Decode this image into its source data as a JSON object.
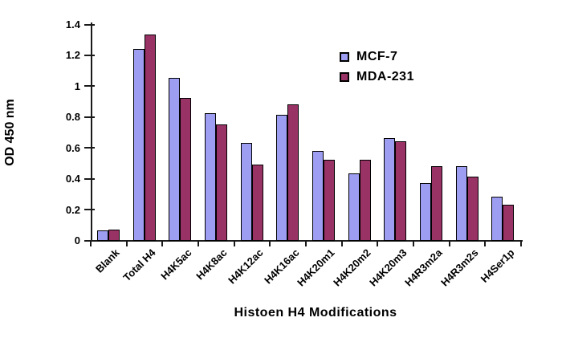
{
  "chart_data": {
    "type": "bar",
    "title": "",
    "xlabel": "Histoen H4 Modifications",
    "ylabel": "OD 450 nm",
    "ylim": [
      0,
      1.4
    ],
    "ytick_step": 0.2,
    "ytick_labels": [
      "0",
      "0.2",
      "0.4",
      "0.6",
      "0.8",
      "1",
      "1.2",
      "1.4"
    ],
    "grid": "off",
    "legend_position": "top-right-inside",
    "background": "#FFFFFF",
    "axis_color": "#1A1A1A",
    "bar_border_color": "#000000",
    "categories": [
      "Blank",
      "Total H4",
      "H4K5ac",
      "H4K8ac",
      "H4K12ac",
      "H4K16ac",
      "H4K20m1",
      "H4K20m2",
      "H4K20m3",
      "H4R3m2a",
      "H4R3m2s",
      "H4Ser1p"
    ],
    "series": [
      {
        "name": "MCF-7",
        "color": "#9D9DF2",
        "values": [
          0.06,
          1.24,
          1.05,
          0.82,
          0.63,
          0.81,
          0.58,
          0.43,
          0.66,
          0.37,
          0.48,
          0.28
        ]
      },
      {
        "name": "MDA-231",
        "color": "#993366",
        "values": [
          0.07,
          1.33,
          0.92,
          0.75,
          0.49,
          0.88,
          0.52,
          0.52,
          0.64,
          0.48,
          0.41,
          0.23
        ]
      }
    ]
  }
}
